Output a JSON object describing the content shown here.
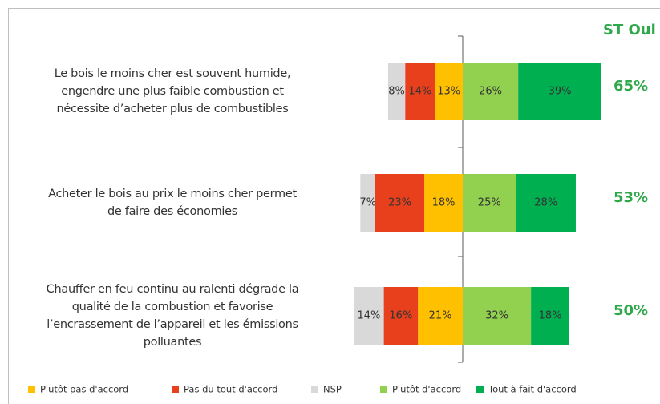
{
  "chart_data": {
    "type": "diverging-bar",
    "total_header": "ST Oui",
    "categories": [
      [
        "Le bois le moins cher est souvent humide,",
        "engendre une plus faible combustion et",
        "nécessite d’acheter plus de combustibles"
      ],
      [
        "Acheter le bois au prix le moins cher permet",
        "de faire des économies"
      ],
      [
        "Chauffer en feu continu au ralenti dégrade la",
        "qualité de la combustion et favorise",
        "l’encrassement de l’appareil et les émissions",
        "polluantes"
      ]
    ],
    "series": [
      {
        "name": "Plutôt pas d'accord",
        "color": "#ffc000",
        "side": "left",
        "values": [
          13,
          18,
          21
        ],
        "value_labels": [
          "13%",
          "18%",
          "21%"
        ]
      },
      {
        "name": "Pas du tout d'accord",
        "color": "#e8401c",
        "side": "left",
        "values": [
          14,
          23,
          16
        ],
        "value_labels": [
          "14%",
          "23%",
          "16%"
        ]
      },
      {
        "name": "NSP",
        "color": "#d9d9d9",
        "side": "left",
        "values": [
          8,
          7,
          14
        ],
        "value_labels": [
          "8%",
          "7%",
          "14%"
        ]
      },
      {
        "name": "Plutôt d'accord",
        "color": "#92d050",
        "side": "right",
        "values": [
          26,
          25,
          32
        ],
        "value_labels": [
          "26%",
          "25%",
          "32%"
        ]
      },
      {
        "name": "Tout à fait d'accord",
        "color": "#00b050",
        "side": "right",
        "values": [
          39,
          28,
          18
        ],
        "value_labels": [
          "39%",
          "28%",
          "18%"
        ]
      }
    ],
    "totals": [
      65,
      53,
      50
    ],
    "total_labels": [
      "65%",
      "53%",
      "50%"
    ]
  }
}
